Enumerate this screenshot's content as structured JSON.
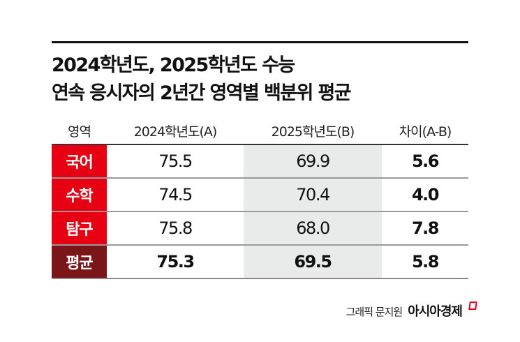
{
  "title": {
    "line1": "2024학년도, 2025학년도 수능",
    "line2": "연속 응시자의 2년간 영역별 백분위 평균"
  },
  "table": {
    "headers": [
      "영역",
      "2024학년도(A)",
      "2025학년도(B)",
      "차이(A-B)"
    ],
    "rows": [
      {
        "label": "국어",
        "a": "75.5",
        "b": "69.9",
        "diff": "5.6",
        "color": "#e60012"
      },
      {
        "label": "수학",
        "a": "74.5",
        "b": "70.4",
        "diff": "4.0",
        "color": "#e60012"
      },
      {
        "label": "탐구",
        "a": "75.8",
        "b": "68.0",
        "diff": "7.8",
        "color": "#e60012"
      },
      {
        "label": "평균",
        "a": "75.3",
        "b": "69.5",
        "diff": "5.8",
        "color": "#7a1518"
      }
    ]
  },
  "colors": {
    "subject_label": "#e60012",
    "average_label": "#7a1518",
    "highlight_column": "#e9eaea",
    "brand_accent": "#e60012"
  },
  "credit": {
    "text": "그래픽 문지원",
    "brand": "아시아경제"
  },
  "chart_data": {
    "type": "table",
    "title": "2024학년도, 2025학년도 수능 연속 응시자의 2년간 영역별 백분위 평균",
    "columns": [
      "영역",
      "2024학년도(A)",
      "2025학년도(B)",
      "차이(A-B)"
    ],
    "categories": [
      "국어",
      "수학",
      "탐구",
      "평균"
    ],
    "series": [
      {
        "name": "2024학년도(A)",
        "values": [
          75.5,
          74.5,
          75.8,
          75.3
        ]
      },
      {
        "name": "2025학년도(B)",
        "values": [
          69.9,
          70.4,
          68.0,
          69.5
        ]
      },
      {
        "name": "차이(A-B)",
        "values": [
          5.6,
          4.0,
          7.8,
          5.8
        ]
      }
    ],
    "source_credit": "그래픽 문지원 아시아경제"
  }
}
